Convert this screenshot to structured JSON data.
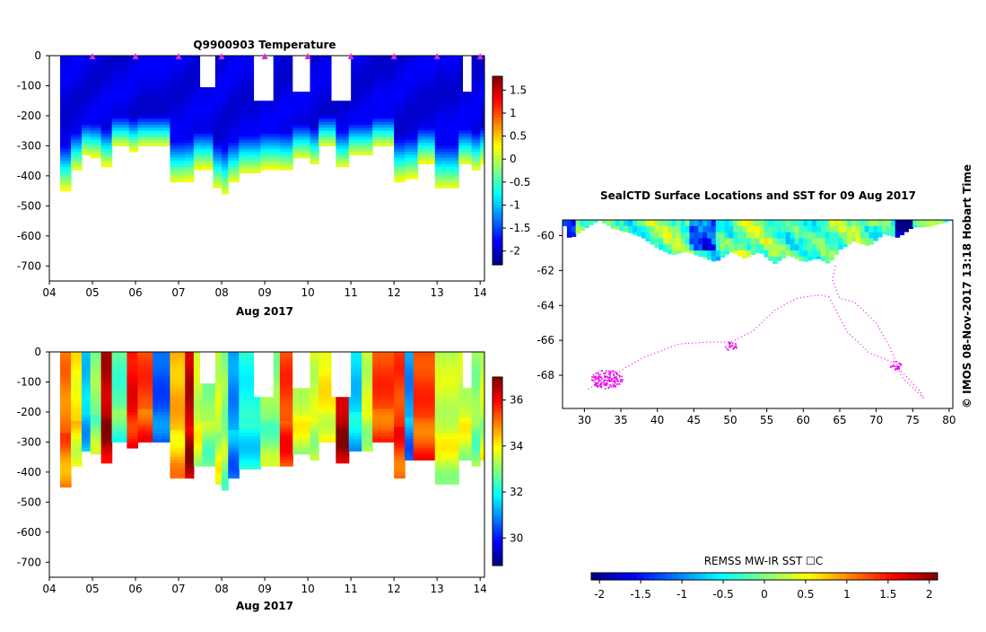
{
  "chart_data": [
    {
      "type": "heatmap",
      "title": "Q9900903  Temperature",
      "xlabel": "Aug 2017",
      "ylabel": "",
      "x_ticks": [
        "04",
        "05",
        "06",
        "07",
        "08",
        "09",
        "10",
        "11",
        "12",
        "13",
        "14"
      ],
      "xlim": [
        4,
        14.1
      ],
      "y_ticks": [
        0,
        -100,
        -200,
        -300,
        -400,
        -500,
        -600,
        -700
      ],
      "ylim": [
        -750,
        0
      ],
      "colorbar": {
        "ticks": [
          1.5,
          1,
          0.5,
          0,
          -0.5,
          -1,
          -1.5,
          -2
        ],
        "range": [
          -2.3,
          1.8
        ]
      },
      "grid": false,
      "profiles": [
        {
          "x": 4.25,
          "w": 0.25,
          "depth": 445
        },
        {
          "x": 4.5,
          "w": 0.25,
          "depth": 380
        },
        {
          "x": 4.75,
          "w": 0.2,
          "depth": 330
        },
        {
          "x": 4.95,
          "w": 0.25,
          "depth": 335
        },
        {
          "x": 5.2,
          "w": 0.25,
          "depth": 365
        },
        {
          "x": 5.45,
          "w": 0.4,
          "depth": 300
        },
        {
          "x": 5.85,
          "w": 0.2,
          "depth": 315
        },
        {
          "x": 6.05,
          "w": 0.75,
          "depth": 300
        },
        {
          "x": 6.8,
          "w": 0.35,
          "depth": 420
        },
        {
          "x": 7.15,
          "w": 0.2,
          "depth": 415
        },
        {
          "x": 7.35,
          "w": 0.45,
          "depth": 375
        },
        {
          "x": 7.8,
          "w": 0.2,
          "depth": 440
        },
        {
          "x": 8.0,
          "w": 0.15,
          "depth": 460
        },
        {
          "x": 8.15,
          "w": 0.25,
          "depth": 420
        },
        {
          "x": 8.4,
          "w": 0.5,
          "depth": 390
        },
        {
          "x": 8.9,
          "w": 0.45,
          "depth": 375
        },
        {
          "x": 9.35,
          "w": 0.3,
          "depth": 380
        },
        {
          "x": 9.65,
          "w": 0.4,
          "depth": 340
        },
        {
          "x": 10.05,
          "w": 0.2,
          "depth": 360
        },
        {
          "x": 10.25,
          "w": 0.4,
          "depth": 300
        },
        {
          "x": 10.65,
          "w": 0.3,
          "depth": 370
        },
        {
          "x": 10.95,
          "w": 0.3,
          "depth": 330
        },
        {
          "x": 11.25,
          "w": 0.25,
          "depth": 330
        },
        {
          "x": 11.5,
          "w": 0.5,
          "depth": 300
        },
        {
          "x": 12.0,
          "w": 0.25,
          "depth": 415
        },
        {
          "x": 12.25,
          "w": 0.3,
          "depth": 405
        },
        {
          "x": 12.55,
          "w": 0.4,
          "depth": 355
        },
        {
          "x": 12.95,
          "w": 0.55,
          "depth": 440
        },
        {
          "x": 13.5,
          "w": 0.3,
          "depth": 360
        },
        {
          "x": 13.8,
          "w": 0.2,
          "depth": 380
        },
        {
          "x": 14.0,
          "w": 0.1,
          "depth": 355
        }
      ],
      "masks": [
        {
          "x": 7.5,
          "w": 0.35,
          "depth": 105
        },
        {
          "x": 8.75,
          "w": 0.45,
          "depth": 150
        },
        {
          "x": 9.65,
          "w": 0.4,
          "depth": 120
        },
        {
          "x": 10.55,
          "w": 0.45,
          "depth": 150
        },
        {
          "x": 13.6,
          "w": 0.2,
          "depth": 120
        }
      ],
      "surface_markers": [
        5,
        6,
        7,
        8,
        9,
        10,
        11,
        12,
        13,
        14
      ]
    },
    {
      "type": "heatmap",
      "title": "",
      "xlabel": "Aug 2017",
      "ylabel": "",
      "x_ticks": [
        "04",
        "05",
        "06",
        "07",
        "08",
        "09",
        "10",
        "11",
        "12",
        "13",
        "14"
      ],
      "xlim": [
        4,
        14.1
      ],
      "y_ticks": [
        0,
        -100,
        -200,
        -300,
        -400,
        -500,
        -600,
        -700
      ],
      "ylim": [
        -750,
        0
      ],
      "colorbar": {
        "ticks": [
          36,
          34,
          32,
          30
        ],
        "range": [
          28.8,
          37
        ]
      },
      "grid": false,
      "profiles": [
        {
          "x": 4.25,
          "w": 0.25,
          "depth": 445,
          "v": 35
        },
        {
          "x": 4.5,
          "w": 0.25,
          "depth": 380,
          "v": 34
        },
        {
          "x": 4.75,
          "w": 0.2,
          "depth": 330,
          "v": 31.5
        },
        {
          "x": 4.95,
          "w": 0.25,
          "depth": 335,
          "v": 33
        },
        {
          "x": 5.2,
          "w": 0.25,
          "depth": 365,
          "v": 36.5
        },
        {
          "x": 5.45,
          "w": 0.35,
          "depth": 300,
          "v": 32.5
        },
        {
          "x": 5.8,
          "w": 0.25,
          "depth": 315,
          "v": 36
        },
        {
          "x": 6.05,
          "w": 0.35,
          "depth": 300,
          "v": 35.5
        },
        {
          "x": 6.4,
          "w": 0.4,
          "depth": 300,
          "v": 30.5
        },
        {
          "x": 6.8,
          "w": 0.35,
          "depth": 420,
          "v": 34.5
        },
        {
          "x": 7.15,
          "w": 0.2,
          "depth": 415,
          "v": 36.5
        },
        {
          "x": 7.35,
          "w": 0.2,
          "depth": 375,
          "v": 33.5
        },
        {
          "x": 7.55,
          "w": 0.3,
          "depth": 375,
          "v": 33
        },
        {
          "x": 7.85,
          "w": 0.15,
          "depth": 440,
          "v": 33.5
        },
        {
          "x": 8.0,
          "w": 0.15,
          "depth": 460,
          "v": 33
        },
        {
          "x": 8.15,
          "w": 0.25,
          "depth": 420,
          "v": 31
        },
        {
          "x": 8.4,
          "w": 0.5,
          "depth": 390,
          "v": 32
        },
        {
          "x": 8.9,
          "w": 0.45,
          "depth": 375,
          "v": 33
        },
        {
          "x": 9.35,
          "w": 0.3,
          "depth": 380,
          "v": 35.5
        },
        {
          "x": 9.65,
          "w": 0.4,
          "depth": 340,
          "v": 33.5
        },
        {
          "x": 10.05,
          "w": 0.2,
          "depth": 360,
          "v": 33.5
        },
        {
          "x": 10.25,
          "w": 0.4,
          "depth": 300,
          "v": 34
        },
        {
          "x": 10.65,
          "w": 0.3,
          "depth": 370,
          "v": 36.5
        },
        {
          "x": 10.95,
          "w": 0.3,
          "depth": 330,
          "v": 31.5
        },
        {
          "x": 11.25,
          "w": 0.25,
          "depth": 330,
          "v": 33.5
        },
        {
          "x": 11.5,
          "w": 0.5,
          "depth": 300,
          "v": 35.5
        },
        {
          "x": 12.0,
          "w": 0.25,
          "depth": 415,
          "v": 35.5
        },
        {
          "x": 12.25,
          "w": 0.2,
          "depth": 360,
          "v": 31
        },
        {
          "x": 12.45,
          "w": 0.5,
          "depth": 355,
          "v": 35.5
        },
        {
          "x": 12.95,
          "w": 0.55,
          "depth": 440,
          "v": 33.5
        },
        {
          "x": 13.5,
          "w": 0.3,
          "depth": 360,
          "v": 33.5
        },
        {
          "x": 13.8,
          "w": 0.2,
          "depth": 380,
          "v": 33
        },
        {
          "x": 14.0,
          "w": 0.1,
          "depth": 355,
          "v": 33.5
        }
      ],
      "masks": [
        {
          "x": 7.5,
          "w": 0.35,
          "depth": 105
        },
        {
          "x": 8.75,
          "w": 0.45,
          "depth": 150
        },
        {
          "x": 9.65,
          "w": 0.4,
          "depth": 120
        },
        {
          "x": 10.55,
          "w": 0.45,
          "depth": 150
        },
        {
          "x": 13.6,
          "w": 0.2,
          "depth": 120
        }
      ]
    },
    {
      "type": "scatter",
      "title": "SealCTD Surface Locations and SST for 09 Aug 2017",
      "xlabel": "",
      "ylabel": "",
      "x_ticks": [
        30,
        35,
        40,
        45,
        50,
        55,
        60,
        65,
        70,
        75,
        80
      ],
      "xlim": [
        27,
        80.5
      ],
      "y_ticks": [
        -60,
        -62,
        -64,
        -66,
        -68
      ],
      "ylim": [
        -69.9,
        -59.1
      ],
      "colorbar": {
        "label": "REMSS MW-IR SST ☐C",
        "ticks": [
          -2,
          -1.5,
          -1,
          -0.5,
          0,
          0.5,
          1,
          1.5,
          2
        ],
        "range": [
          -2.1,
          2.1
        ]
      },
      "sst_ice_edge": [
        {
          "lon": 27,
          "lat": -59.1
        },
        {
          "lon": 28,
          "lat": -60.2
        },
        {
          "lon": 30,
          "lat": -59.6
        },
        {
          "lon": 32,
          "lat": -59.1
        },
        {
          "lon": 34,
          "lat": -59.6
        },
        {
          "lon": 36,
          "lat": -59.8
        },
        {
          "lon": 38,
          "lat": -60.1
        },
        {
          "lon": 40,
          "lat": -60.7
        },
        {
          "lon": 42,
          "lat": -61.1
        },
        {
          "lon": 44,
          "lat": -60.9
        },
        {
          "lon": 46,
          "lat": -61.2
        },
        {
          "lon": 48,
          "lat": -61.5
        },
        {
          "lon": 50,
          "lat": -60.9
        },
        {
          "lon": 52,
          "lat": -61.3
        },
        {
          "lon": 54,
          "lat": -60.9
        },
        {
          "lon": 56,
          "lat": -61.6
        },
        {
          "lon": 58,
          "lat": -61.1
        },
        {
          "lon": 60,
          "lat": -61.5
        },
        {
          "lon": 62,
          "lat": -61.3
        },
        {
          "lon": 63.5,
          "lat": -61.6
        },
        {
          "lon": 65,
          "lat": -60.8
        },
        {
          "lon": 67,
          "lat": -60.3
        },
        {
          "lon": 69,
          "lat": -60.6
        },
        {
          "lon": 71,
          "lat": -59.9
        },
        {
          "lon": 73,
          "lat": -60.1
        },
        {
          "lon": 75,
          "lat": -59.5
        },
        {
          "lon": 77,
          "lat": -59.5
        },
        {
          "lon": 80.5,
          "lat": -59.1
        }
      ],
      "tracks": [
        [
          {
            "lon": 30.5,
            "lat": -68.8
          },
          {
            "lon": 33,
            "lat": -68.2
          },
          {
            "lon": 38,
            "lat": -67
          },
          {
            "lon": 43,
            "lat": -66.2
          },
          {
            "lon": 47,
            "lat": -66.1
          },
          {
            "lon": 50,
            "lat": -66.1
          },
          {
            "lon": 53,
            "lat": -65.5
          },
          {
            "lon": 56,
            "lat": -64.3
          },
          {
            "lon": 59,
            "lat": -63.6
          },
          {
            "lon": 62,
            "lat": -63.4
          },
          {
            "lon": 63.5,
            "lat": -63.5
          }
        ],
        [
          {
            "lon": 63.5,
            "lat": -63.5
          },
          {
            "lon": 66,
            "lat": -65.5
          },
          {
            "lon": 69,
            "lat": -66.7
          },
          {
            "lon": 72,
            "lat": -67.2
          },
          {
            "lon": 74,
            "lat": -68
          },
          {
            "lon": 76,
            "lat": -68.9
          },
          {
            "lon": 76.5,
            "lat": -69.3
          }
        ],
        [
          {
            "lon": 76.5,
            "lat": -69.3
          },
          {
            "lon": 73.5,
            "lat": -68.1
          },
          {
            "lon": 72,
            "lat": -66.5
          },
          {
            "lon": 70,
            "lat": -65
          },
          {
            "lon": 67,
            "lat": -63.8
          },
          {
            "lon": 65,
            "lat": -63.6
          },
          {
            "lon": 64,
            "lat": -62.5
          },
          {
            "lon": 64.5,
            "lat": -61.6
          }
        ]
      ],
      "clusters": [
        {
          "lon": 33,
          "lat": -68.2,
          "n": 150
        },
        {
          "lon": 50,
          "lat": -66.3,
          "n": 25
        },
        {
          "lon": 72.5,
          "lat": -67.4,
          "n": 25
        }
      ]
    }
  ],
  "credit": "©  IMOS 08-Nov-2017 13:18 Hobart Time"
}
